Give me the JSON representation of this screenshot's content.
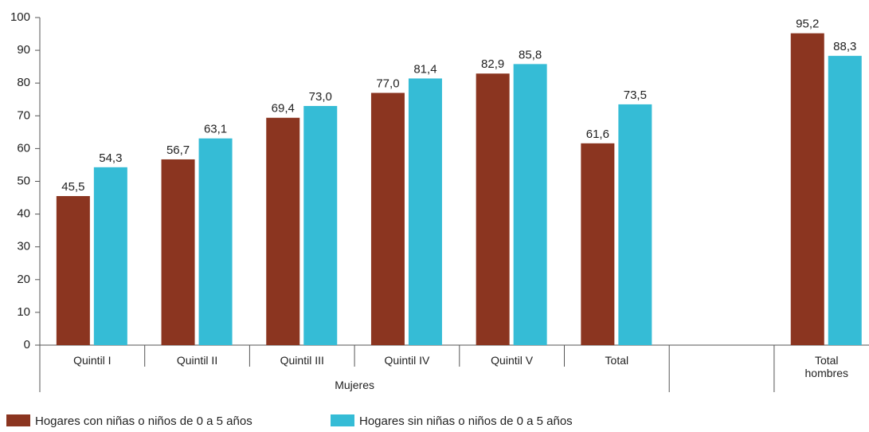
{
  "chart_data": {
    "type": "bar",
    "categories": [
      "Quintil I",
      "Quintil II",
      "Quintil III",
      "Quintil IV",
      "Quintil V",
      "Total",
      null,
      "Total hombres"
    ],
    "group_label": "Mujeres",
    "series": [
      {
        "name": "Hogares con niñas o niños de 0 a 5 años",
        "color": "#8b3520",
        "values": [
          45.5,
          56.7,
          69.4,
          77.0,
          82.9,
          61.6,
          null,
          95.2
        ],
        "value_labels": [
          "45,5",
          "56,7",
          "69,4",
          "77,0",
          "82,9",
          "61,6",
          null,
          "95,2"
        ]
      },
      {
        "name": "Hogares sin niñas o niños de 0 a 5 años",
        "color": "#35bcd6",
        "values": [
          54.3,
          63.1,
          73.0,
          81.4,
          85.8,
          73.5,
          null,
          88.3
        ],
        "value_labels": [
          "54,3",
          "63,1",
          "73,0",
          "81,4",
          "85,8",
          "73,5",
          null,
          "88,3"
        ]
      }
    ],
    "ylim": [
      0,
      100
    ],
    "yticks": [
      0,
      10,
      20,
      30,
      40,
      50,
      60,
      70,
      80,
      90,
      100
    ],
    "grid": false
  }
}
